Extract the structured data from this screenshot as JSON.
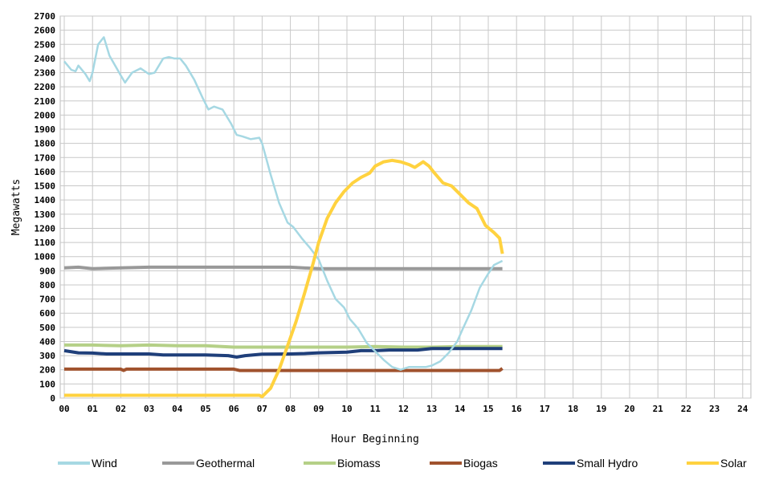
{
  "chart_data": {
    "type": "line",
    "xlabel": "Hour Beginning",
    "ylabel": "Megawatts",
    "xlim": [
      0,
      24
    ],
    "ylim": [
      0,
      2700
    ],
    "y_ticks": [
      "0",
      "100",
      "200",
      "300",
      "400",
      "500",
      "600",
      "700",
      "800",
      "900",
      "1000",
      "1100",
      "1200",
      "1300",
      "1400",
      "1500",
      "1600",
      "1700",
      "1800",
      "1900",
      "2000",
      "2100",
      "2200",
      "2300",
      "2400",
      "2500",
      "2600",
      "2700"
    ],
    "x_ticks": [
      "00",
      "01",
      "02",
      "03",
      "04",
      "05",
      "06",
      "07",
      "08",
      "09",
      "10",
      "11",
      "12",
      "13",
      "14",
      "15",
      "16",
      "17",
      "18",
      "19",
      "20",
      "21",
      "22",
      "23",
      "24"
    ],
    "grid": true,
    "legend_position": "bottom",
    "series": [
      {
        "name": "Wind",
        "color": "#a6d8e3",
        "points": [
          [
            0,
            2380
          ],
          [
            0.25,
            2320
          ],
          [
            0.4,
            2310
          ],
          [
            0.5,
            2350
          ],
          [
            0.75,
            2290
          ],
          [
            0.9,
            2240
          ],
          [
            1.0,
            2300
          ],
          [
            1.2,
            2500
          ],
          [
            1.4,
            2550
          ],
          [
            1.6,
            2420
          ],
          [
            1.8,
            2350
          ],
          [
            2.0,
            2280
          ],
          [
            2.15,
            2230
          ],
          [
            2.4,
            2300
          ],
          [
            2.7,
            2330
          ],
          [
            3.0,
            2290
          ],
          [
            3.2,
            2300
          ],
          [
            3.5,
            2400
          ],
          [
            3.7,
            2410
          ],
          [
            3.9,
            2400
          ],
          [
            4.1,
            2400
          ],
          [
            4.3,
            2350
          ],
          [
            4.6,
            2250
          ],
          [
            4.9,
            2120
          ],
          [
            5.1,
            2040
          ],
          [
            5.3,
            2060
          ],
          [
            5.6,
            2040
          ],
          [
            5.9,
            1940
          ],
          [
            6.1,
            1860
          ],
          [
            6.3,
            1850
          ],
          [
            6.6,
            1830
          ],
          [
            6.9,
            1840
          ],
          [
            7.0,
            1800
          ],
          [
            7.3,
            1580
          ],
          [
            7.6,
            1380
          ],
          [
            7.9,
            1240
          ],
          [
            8.1,
            1210
          ],
          [
            8.4,
            1130
          ],
          [
            8.7,
            1060
          ],
          [
            9.0,
            980
          ],
          [
            9.3,
            830
          ],
          [
            9.6,
            700
          ],
          [
            9.9,
            640
          ],
          [
            10.1,
            560
          ],
          [
            10.4,
            490
          ],
          [
            10.7,
            390
          ],
          [
            11.0,
            330
          ],
          [
            11.3,
            270
          ],
          [
            11.6,
            220
          ],
          [
            11.9,
            200
          ],
          [
            12.2,
            220
          ],
          [
            12.5,
            220
          ],
          [
            12.8,
            220
          ],
          [
            13.0,
            230
          ],
          [
            13.3,
            260
          ],
          [
            13.6,
            320
          ],
          [
            13.9,
            400
          ],
          [
            14.1,
            490
          ],
          [
            14.4,
            620
          ],
          [
            14.7,
            780
          ],
          [
            15.0,
            880
          ],
          [
            15.2,
            940
          ],
          [
            15.5,
            970
          ]
        ]
      },
      {
        "name": "Geothermal",
        "color": "#999999",
        "points": [
          [
            0,
            920
          ],
          [
            0.5,
            925
          ],
          [
            1,
            915
          ],
          [
            2,
            920
          ],
          [
            3,
            925
          ],
          [
            4,
            925
          ],
          [
            5,
            925
          ],
          [
            6,
            925
          ],
          [
            7,
            925
          ],
          [
            8,
            925
          ],
          [
            9,
            915
          ],
          [
            10,
            915
          ],
          [
            11,
            915
          ],
          [
            12,
            915
          ],
          [
            13,
            915
          ],
          [
            14,
            915
          ],
          [
            15,
            915
          ],
          [
            15.5,
            915
          ]
        ]
      },
      {
        "name": "Biomass",
        "color": "#b5d087",
        "points": [
          [
            0,
            375
          ],
          [
            1,
            375
          ],
          [
            2,
            370
          ],
          [
            3,
            375
          ],
          [
            4,
            370
          ],
          [
            5,
            370
          ],
          [
            6,
            360
          ],
          [
            7,
            360
          ],
          [
            8,
            360
          ],
          [
            9,
            360
          ],
          [
            10,
            360
          ],
          [
            11,
            365
          ],
          [
            12,
            360
          ],
          [
            13,
            360
          ],
          [
            14,
            365
          ],
          [
            15,
            365
          ],
          [
            15.5,
            365
          ]
        ]
      },
      {
        "name": "Biogas",
        "color": "#a0522d",
        "points": [
          [
            0,
            205
          ],
          [
            1,
            205
          ],
          [
            2,
            205
          ],
          [
            2.1,
            195
          ],
          [
            2.2,
            205
          ],
          [
            3,
            205
          ],
          [
            4,
            205
          ],
          [
            5,
            205
          ],
          [
            6,
            205
          ],
          [
            6.2,
            195
          ],
          [
            7,
            195
          ],
          [
            8,
            195
          ],
          [
            9,
            195
          ],
          [
            10,
            195
          ],
          [
            11,
            195
          ],
          [
            12,
            195
          ],
          [
            13,
            195
          ],
          [
            14,
            195
          ],
          [
            15,
            195
          ],
          [
            15.4,
            195
          ],
          [
            15.5,
            210
          ]
        ]
      },
      {
        "name": "Small Hydro",
        "color": "#1f3f7a",
        "points": [
          [
            0,
            335
          ],
          [
            0.5,
            320
          ],
          [
            1,
            318
          ],
          [
            1.5,
            312
          ],
          [
            2,
            312
          ],
          [
            3,
            312
          ],
          [
            3.5,
            305
          ],
          [
            4,
            305
          ],
          [
            5,
            305
          ],
          [
            5.8,
            300
          ],
          [
            6.1,
            290
          ],
          [
            6.4,
            300
          ],
          [
            7,
            310
          ],
          [
            8,
            312
          ],
          [
            8.5,
            315
          ],
          [
            9,
            320
          ],
          [
            10,
            325
          ],
          [
            10.5,
            335
          ],
          [
            11,
            335
          ],
          [
            11.5,
            340
          ],
          [
            12,
            340
          ],
          [
            12.5,
            340
          ],
          [
            13,
            350
          ],
          [
            14,
            350
          ],
          [
            15,
            350
          ],
          [
            15.5,
            350
          ]
        ]
      },
      {
        "name": "Solar",
        "color": "#ffd23f",
        "points": [
          [
            0,
            20
          ],
          [
            1,
            20
          ],
          [
            2,
            20
          ],
          [
            3,
            20
          ],
          [
            4,
            20
          ],
          [
            5,
            20
          ],
          [
            6,
            20
          ],
          [
            6.9,
            20
          ],
          [
            7.0,
            10
          ],
          [
            7.3,
            70
          ],
          [
            7.6,
            200
          ],
          [
            7.9,
            370
          ],
          [
            8.2,
            540
          ],
          [
            8.5,
            740
          ],
          [
            8.8,
            950
          ],
          [
            9.0,
            1100
          ],
          [
            9.3,
            1270
          ],
          [
            9.6,
            1380
          ],
          [
            9.9,
            1460
          ],
          [
            10.2,
            1520
          ],
          [
            10.5,
            1560
          ],
          [
            10.8,
            1590
          ],
          [
            11.0,
            1640
          ],
          [
            11.3,
            1670
          ],
          [
            11.6,
            1680
          ],
          [
            11.9,
            1670
          ],
          [
            12.2,
            1650
          ],
          [
            12.4,
            1630
          ],
          [
            12.7,
            1670
          ],
          [
            12.9,
            1640
          ],
          [
            13.1,
            1590
          ],
          [
            13.4,
            1520
          ],
          [
            13.7,
            1500
          ],
          [
            14.0,
            1440
          ],
          [
            14.3,
            1380
          ],
          [
            14.6,
            1340
          ],
          [
            14.9,
            1220
          ],
          [
            15.2,
            1170
          ],
          [
            15.4,
            1130
          ],
          [
            15.5,
            1020
          ]
        ]
      }
    ]
  }
}
